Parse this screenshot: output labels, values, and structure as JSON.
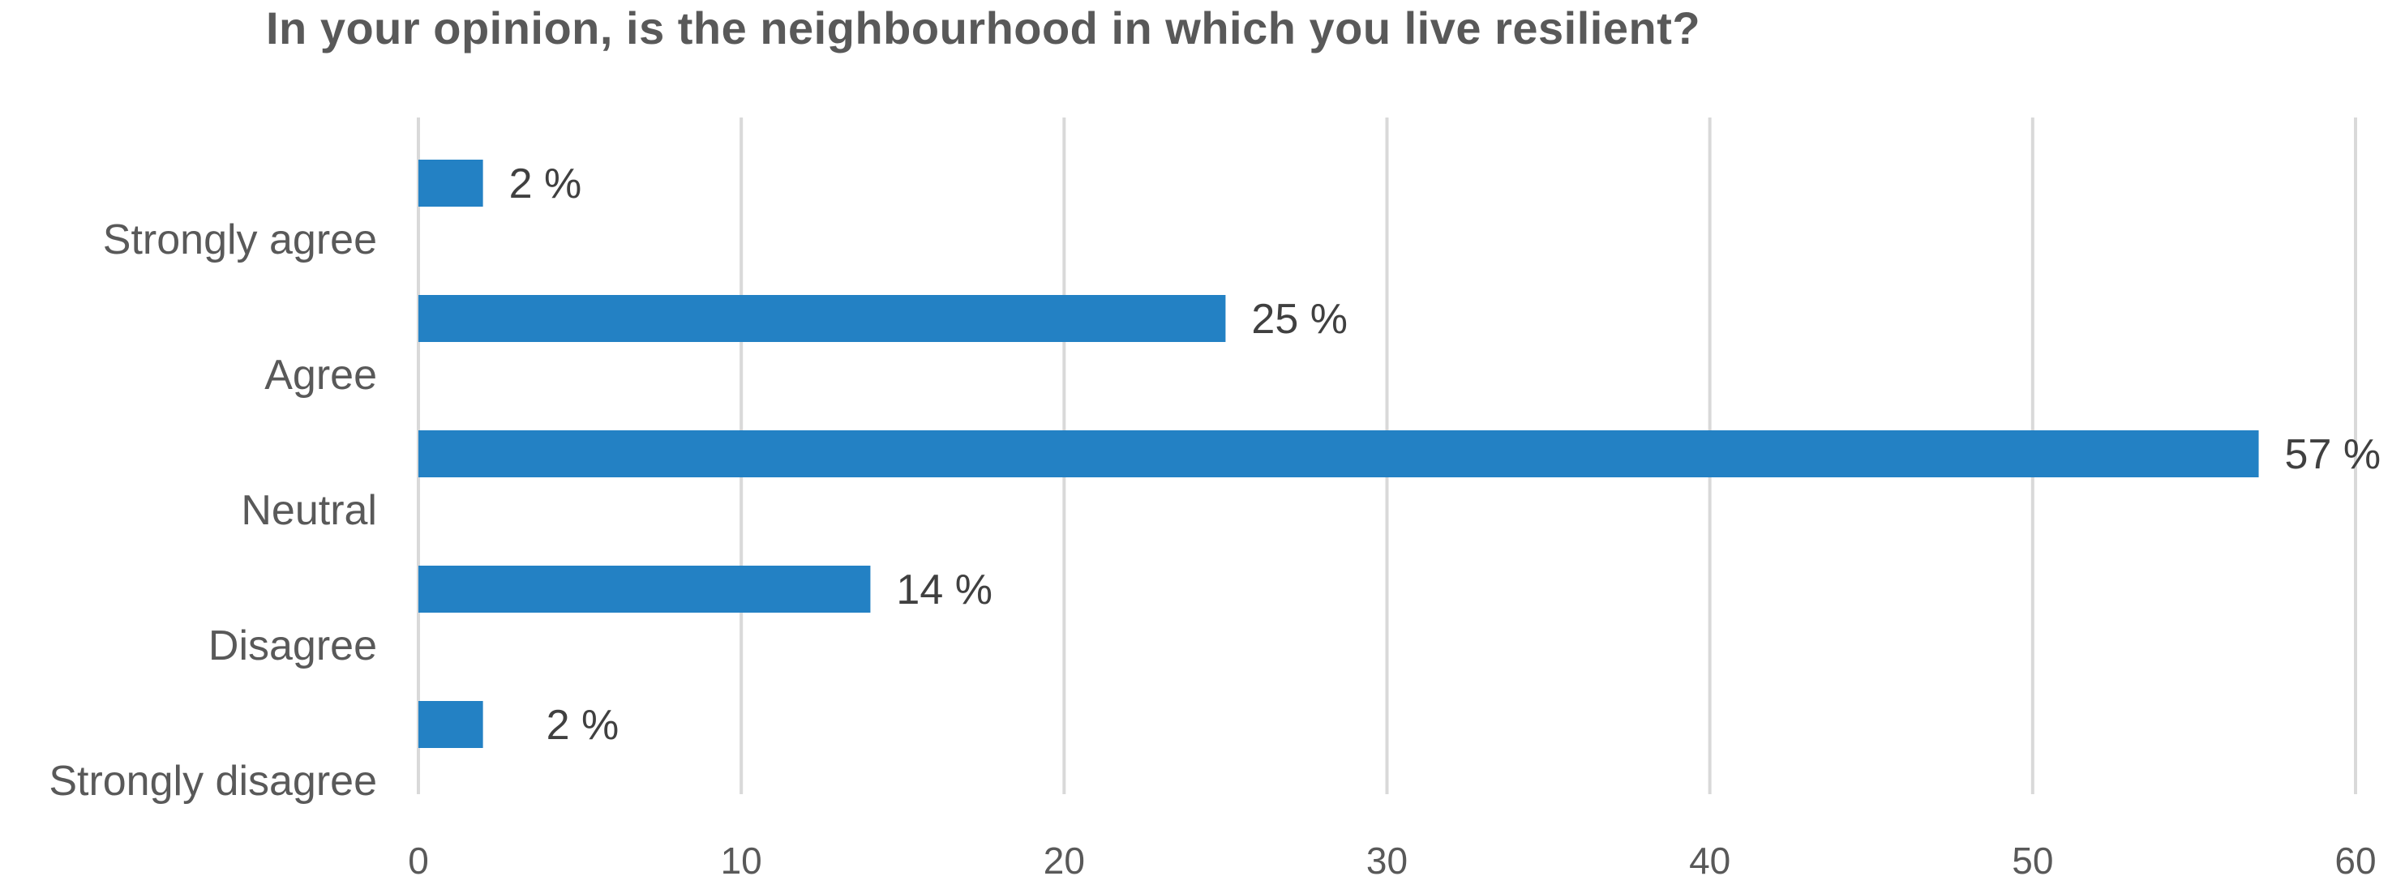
{
  "chart_data": {
    "type": "bar",
    "orientation": "horizontal",
    "title": "In your opinion, is the neighbourhood in which you live resilient?",
    "categories": [
      "Strongly agree",
      "Agree",
      "Neutral",
      "Disagree",
      "Strongly disagree"
    ],
    "values": [
      2,
      25,
      57,
      14,
      2
    ],
    "data_labels": [
      "2 %",
      "25 %",
      "57 %",
      "14 %",
      "2 %"
    ],
    "xlim": [
      0,
      60
    ],
    "x_ticks": [
      0,
      10,
      20,
      30,
      40,
      50,
      60
    ],
    "x_tick_labels": [
      "0",
      "10",
      "20",
      "30",
      "40",
      "50",
      "60"
    ],
    "grid": true,
    "legend": "none",
    "bar_color": "#2381c4"
  }
}
